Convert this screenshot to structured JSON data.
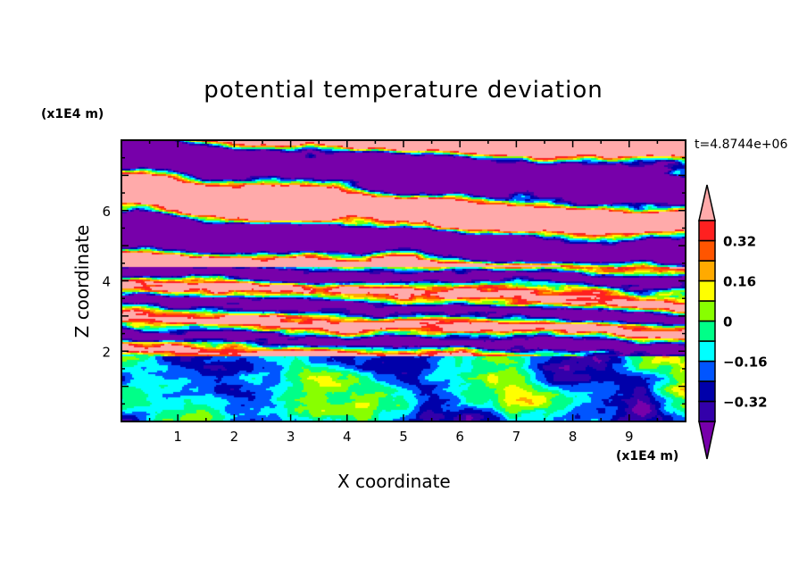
{
  "chart_data": {
    "type": "heatmap",
    "title": "potential temperature deviation",
    "xlabel": "X coordinate",
    "ylabel": "Z coordinate",
    "x_unit": "(x1E4 m)",
    "y_unit": "(x1E4 m)",
    "xlim": [
      0,
      10
    ],
    "ylim": [
      0,
      8
    ],
    "x_ticks": [
      "1",
      "2",
      "3",
      "4",
      "5",
      "6",
      "7",
      "8",
      "9"
    ],
    "y_ticks": [
      "2",
      "4",
      "6"
    ],
    "time_label": "t=4.8744e+06",
    "colorbar": {
      "levels": [
        -0.4,
        -0.32,
        -0.24,
        -0.16,
        -0.08,
        0,
        0.08,
        0.16,
        0.24,
        0.32,
        0.4
      ],
      "tick_labels": [
        "0.32",
        "0.16",
        "0",
        "−0.16",
        "−0.32"
      ],
      "tick_values": [
        0.32,
        0.16,
        0,
        -0.16,
        -0.32
      ],
      "colors": [
        "#7700aa",
        "#3300aa",
        "#0000aa",
        "#0055ff",
        "#00ffff",
        "#00ff88",
        "#88ff00",
        "#ffff00",
        "#ffaa00",
        "#ff5500",
        "#ff2020",
        "#ffaaaa"
      ],
      "extend": "both"
    }
  }
}
